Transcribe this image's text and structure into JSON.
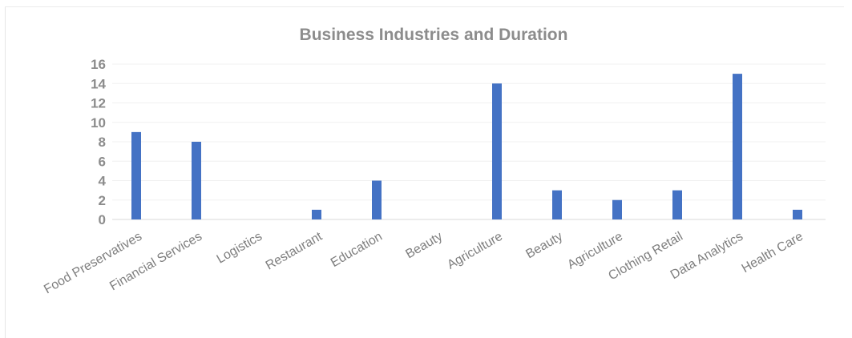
{
  "chart_data": {
    "type": "bar",
    "title": "Business Industries and Duration",
    "xlabel": "",
    "ylabel": "",
    "categories": [
      "Food Preservatives",
      "Financial Services",
      "Logistics",
      "Restaurant",
      "Education",
      "Beauty",
      "Agriculture",
      "Beauty",
      "Agriculture",
      "Clothing Retail",
      "Data Analytics",
      "Health Care"
    ],
    "values": [
      9,
      8,
      0,
      1,
      4,
      0,
      14,
      3,
      2,
      3,
      15,
      1
    ],
    "ylim": [
      0,
      16
    ],
    "yticks": [
      "0",
      "2",
      "4",
      "6",
      "8",
      "10",
      "12",
      "14",
      "16"
    ],
    "grid": true,
    "legend": "none",
    "bar_color": "#4472c4"
  }
}
